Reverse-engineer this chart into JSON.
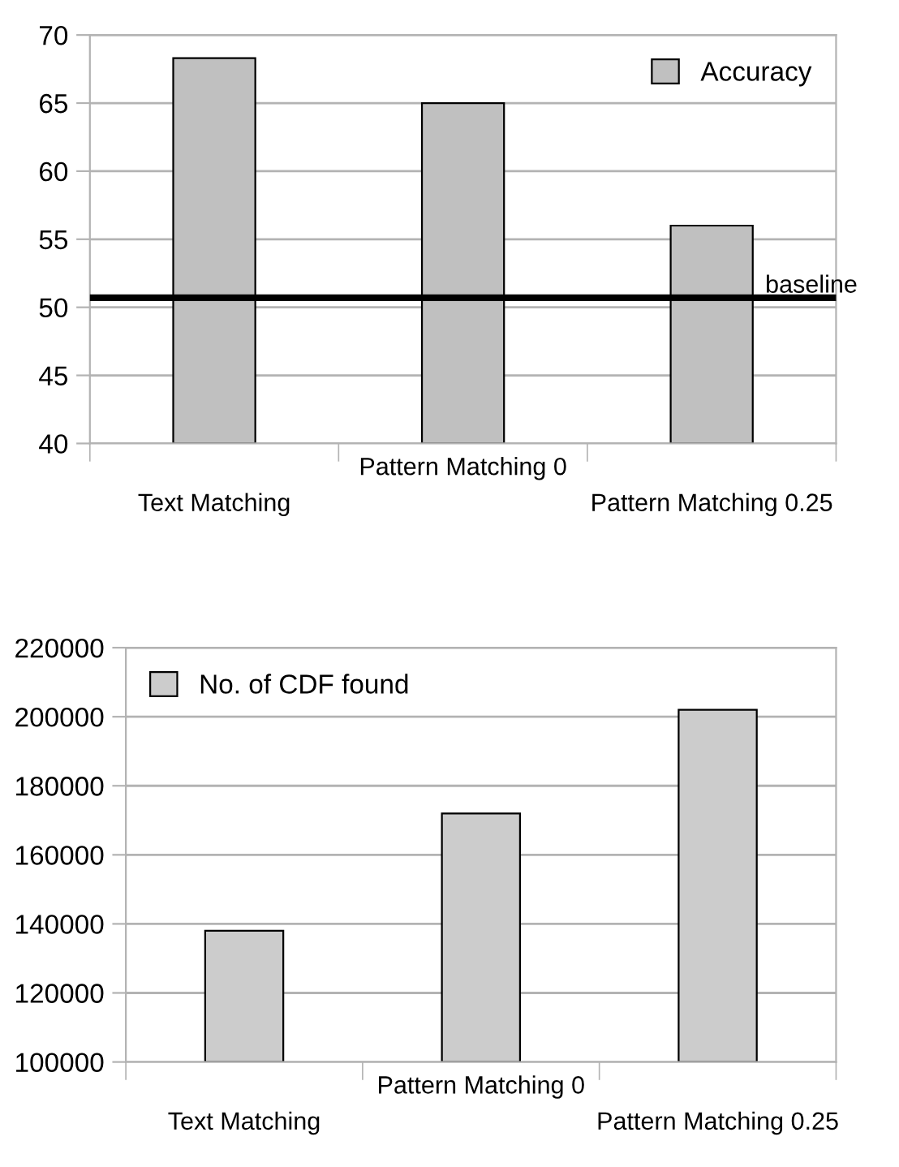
{
  "chart_data": [
    {
      "type": "bar",
      "categories": [
        "Text Matching",
        "Pattern Matching 0",
        "Pattern Matching 0.25"
      ],
      "series": [
        {
          "name": "Accuracy",
          "color": "#c0c0c0",
          "values": [
            68.3,
            65,
            56
          ]
        }
      ],
      "ylim": [
        40,
        70
      ],
      "yticks": [
        40,
        45,
        50,
        55,
        60,
        65,
        70
      ],
      "grid": "y",
      "legend": "top right",
      "ref_lines": [
        {
          "axis": "y",
          "value": 50.7,
          "label": "baseline",
          "color": "#000000",
          "line_style": "solid"
        }
      ]
    },
    {
      "type": "bar",
      "categories": [
        "Text Matching",
        "Pattern Matching 0",
        "Pattern Matching 0.25"
      ],
      "series": [
        {
          "name": "No. of CDF found",
          "color": "#cccccc",
          "values": [
            138000,
            172000,
            202000
          ]
        }
      ],
      "ylim": [
        100000,
        220000
      ],
      "yticks": [
        100000,
        120000,
        140000,
        160000,
        180000,
        200000,
        220000
      ],
      "grid": "y",
      "legend": "top left"
    }
  ]
}
